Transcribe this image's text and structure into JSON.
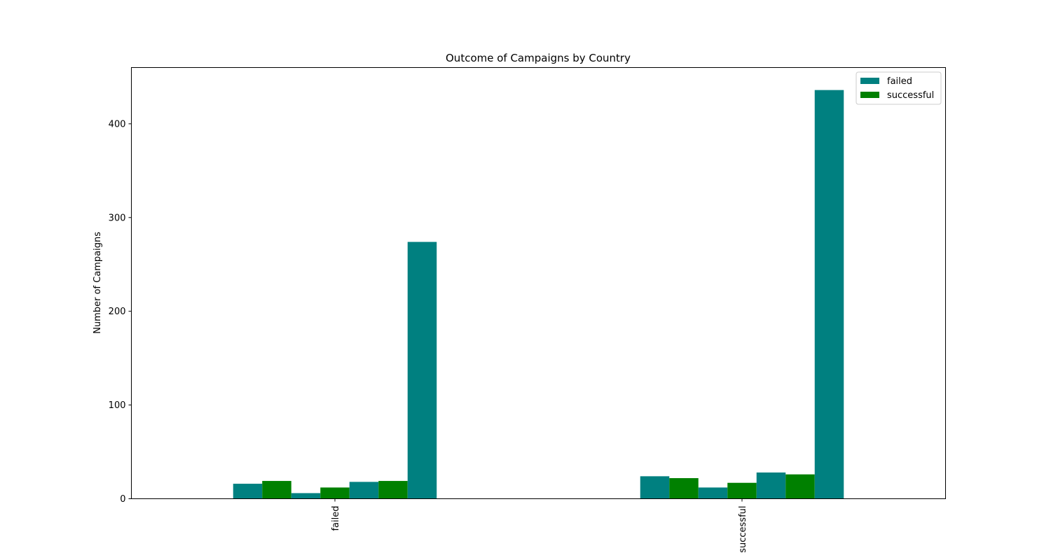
{
  "chart_data": {
    "type": "bar",
    "title": "Outcome of Campaigns by Country",
    "xlabel": "",
    "ylabel": "Number of Campaigns",
    "categories": [
      "failed",
      "successful"
    ],
    "ylim": [
      0,
      460
    ],
    "yticks": [
      0,
      100,
      200,
      300,
      400
    ],
    "grid": false,
    "legend_position": "top-right",
    "legend": [
      {
        "label": "failed",
        "color": "#008080"
      },
      {
        "label": "successful",
        "color": "#008000"
      }
    ],
    "series": [
      {
        "color": "#008080",
        "values": [
          16,
          24
        ]
      },
      {
        "color": "#008000",
        "values": [
          19,
          22
        ]
      },
      {
        "color": "#008080",
        "values": [
          6,
          12
        ]
      },
      {
        "color": "#008000",
        "values": [
          12,
          17
        ]
      },
      {
        "color": "#008080",
        "values": [
          18,
          28
        ]
      },
      {
        "color": "#008000",
        "values": [
          19,
          26
        ]
      },
      {
        "color": "#008080",
        "values": [
          274,
          436
        ]
      }
    ]
  }
}
